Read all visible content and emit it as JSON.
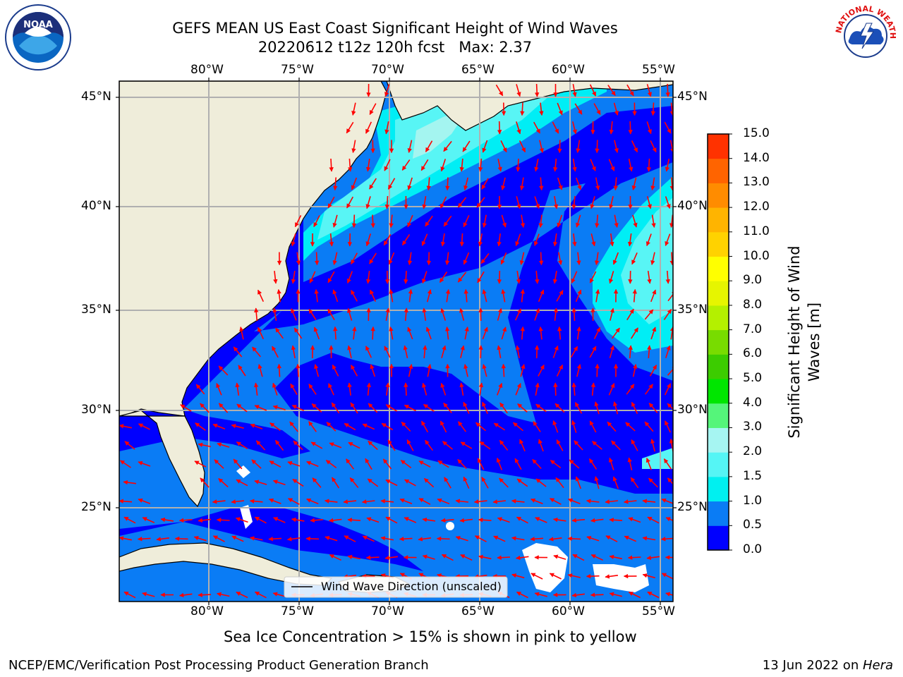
{
  "header": {
    "title_line1": "GEFS MEAN US East Coast Significant Height of Wind Waves",
    "title_line2": "20220612 t12z 120h fcst   Max: 2.37"
  },
  "logos": {
    "left": {
      "icon": "noaa-logo-icon",
      "text": "NOAA"
    },
    "right": {
      "icon": "nws-logo-icon",
      "text": "NATIONAL WEATHER SERVICE"
    }
  },
  "map": {
    "lon_labels": [
      "80°W",
      "75°W",
      "70°W",
      "65°W",
      "60°W",
      "55°W"
    ],
    "lat_labels": [
      "45°N",
      "40°N",
      "35°N",
      "30°N",
      "25°N"
    ],
    "legend_label": "Wind Wave Direction (unscaled)",
    "colors": {
      "land": "#efedda",
      "c0": "#0000ff",
      "c05": "#0a7cf5",
      "c10": "#00eef5",
      "c15": "#58f5f5",
      "c20": "#a4f5f0",
      "arrow": "#ff0000",
      "grid": "#b0b0b0"
    }
  },
  "colorbar": {
    "label": "Significant Height of Wind Waves [m]",
    "ticks": [
      "15.0",
      "14.0",
      "13.0",
      "12.0",
      "11.0",
      "10.0",
      "9.0",
      "8.0",
      "7.0",
      "6.0",
      "5.0",
      "4.0",
      "3.0",
      "2.0",
      "1.5",
      "1.0",
      "0.5",
      "0.0"
    ],
    "colors_bottom_to_top": [
      "#0000ff",
      "#0a7cf5",
      "#00f0f0",
      "#55f5f5",
      "#a6f5f2",
      "#55f57a",
      "#00e600",
      "#3ccc00",
      "#78dc00",
      "#b4f000",
      "#e6f500",
      "#ffff00",
      "#ffd200",
      "#ffb400",
      "#ff8c00",
      "#ff6400",
      "#ff3200"
    ]
  },
  "footnote": "Sea Ice Concentration > 15% is shown in pink to yellow",
  "footer": {
    "left": "NCEP/EMC/Verification Post Processing Product Generation Branch",
    "right_date": "13 Jun 2022 on ",
    "right_machine": "Hera"
  }
}
